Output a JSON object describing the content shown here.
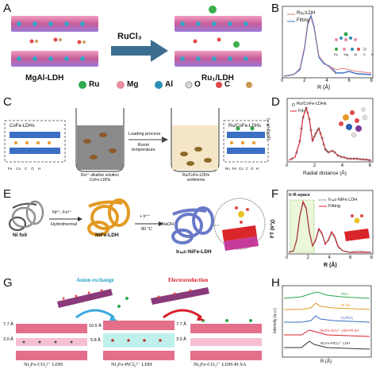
{
  "panel_labels": {
    "a": "A",
    "b": "B",
    "c": "C",
    "d": "D",
    "e": "E",
    "f": "F",
    "g": "G",
    "h": "H"
  },
  "colors": {
    "red": "#e0201c",
    "blue": "#3b6fc4",
    "pink": "#e36f8a",
    "teal": "#1aa6b8",
    "green": "#2ea84a",
    "orange": "#e29a22",
    "purple": "#6a2a9a"
  },
  "panel_a": {
    "arrow_label": "RuCl₃",
    "left_caption": "MgAl-LDH",
    "right_caption": "Ru₁/LDH",
    "legend": [
      "Ru",
      "Mg",
      "Al",
      "O",
      "C"
    ]
  },
  "panel_b": {
    "legend": [
      "Ru₁/LDH",
      "Fitting"
    ],
    "xlabel": "R (Å)",
    "xticks": [
      "0",
      "2",
      "4",
      "6",
      "8"
    ],
    "inset_legend": [
      "Ru",
      "Mg",
      "Al",
      "O",
      "H"
    ]
  },
  "panel_c": {
    "left_box": "CoFe-LDHs",
    "beaker1": "Ru³⁺ alkaline solution\nCoFe-LDHs",
    "process": "Loading process",
    "process2": "Room\ntemperature",
    "beaker2": "Ru/CoFe-LDHs\nsediments",
    "right_box": "Ru/CoFe-LDHs",
    "legend_left": [
      "Fe",
      "Co",
      "C",
      "O",
      "H"
    ],
    "legend_right": [
      "Ru",
      "Fe",
      "Co",
      "C",
      "O",
      "H"
    ]
  },
  "panel_d": {
    "legend": [
      "Ru/CoFe-LDHs",
      "Fit"
    ],
    "ylabel": "|χ(R)| (Å⁻³)",
    "xlabel": "Radial distance (Å)",
    "xticks": [
      "0",
      "2",
      "4",
      "6"
    ]
  },
  "panel_e": {
    "label1": "Ni foil",
    "arrow1_top": "Ni²⁺, Fe³⁺",
    "arrow1_bot": "Hydrothermal",
    "label2": "NiFe-LDH",
    "arrow2_top": "+ Ir⁴⁺",
    "arrow2_bot": "80 °C",
    "arrow3": "NaOH",
    "label3": "Irₛₐᴄ-NiFe-LDH"
  },
  "panel_f": {
    "title": "Ir-R-space",
    "legend": [
      "Irₛₐᴄ-NiFe LDH",
      "Fitting"
    ],
    "ylabel": "FT (k²χ)",
    "xlabel": "R (Å)",
    "xticks": [
      "0",
      "2",
      "4",
      "6",
      "8"
    ]
  },
  "panel_g": {
    "anion": "Anion exchange",
    "electro": "Electroreduction",
    "spacing": [
      "7.7 Å",
      "3.0 Å",
      "10.5 Å",
      "5.8 Å",
      "7.7 Å",
      "3.0 Å"
    ],
    "captions": [
      "Ni₃Fe-CO₃²⁻ LDH",
      "Ni₃Fe-PtCl₆²⁻ LDH",
      "Ni₃Fe-CO₃²⁻ LDH-Pt SA"
    ]
  },
  "panel_h": {
    "series": [
      "PtO₂",
      "Pt foil",
      "H₂PtCl₆",
      "Ni₃Fe-CO₃²⁻ LDH-Pt SA",
      "Ni₃Fe-PtCl₆²⁻ LDH"
    ],
    "ylabel": "Intensity (a.u.)",
    "xlabel": "R (Å)"
  }
}
